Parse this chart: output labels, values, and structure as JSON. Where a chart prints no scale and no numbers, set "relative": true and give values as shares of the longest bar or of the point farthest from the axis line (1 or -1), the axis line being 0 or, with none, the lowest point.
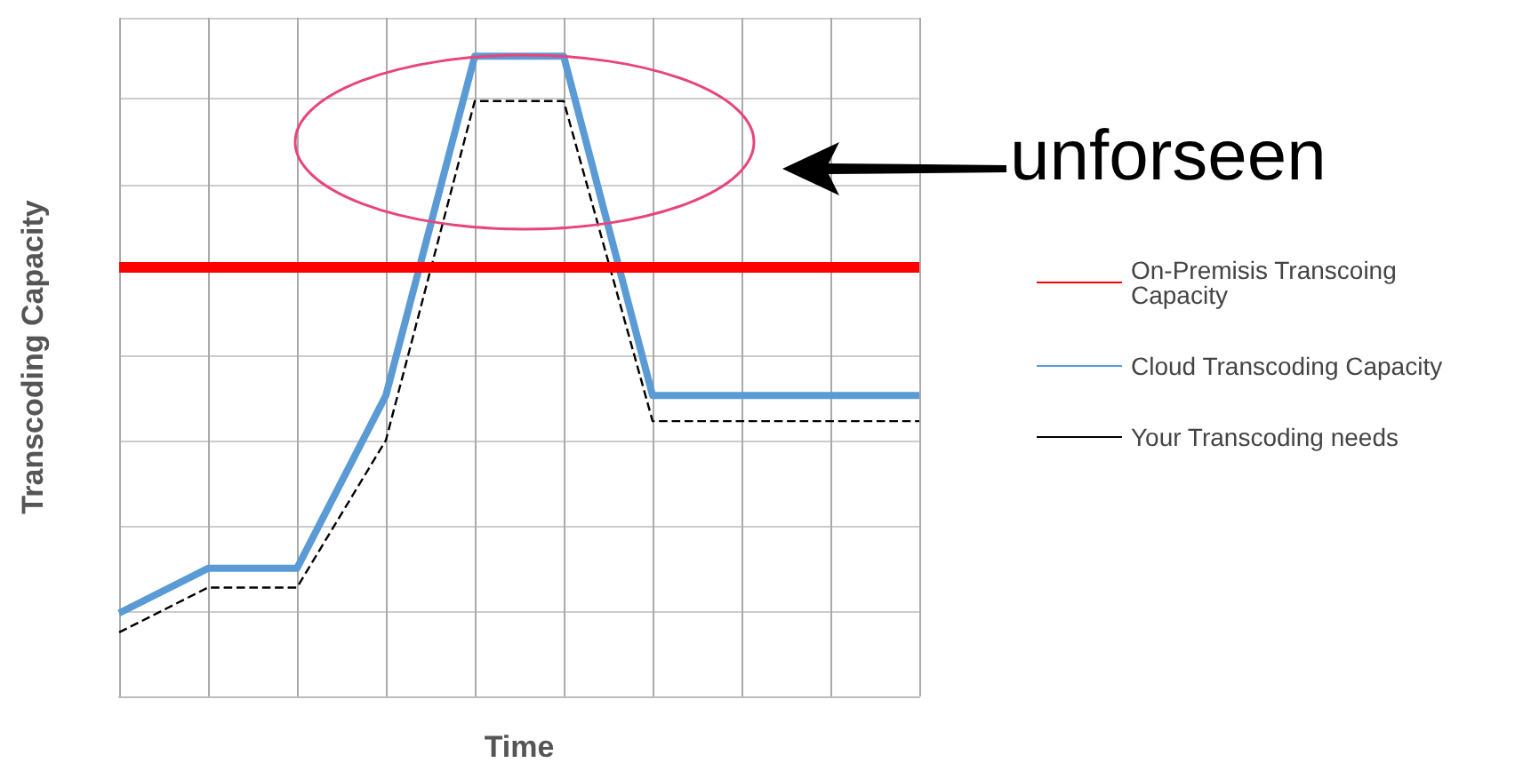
{
  "chart_data": {
    "type": "line",
    "relative": true,
    "xlabel": "Time",
    "ylabel": "Transcoding Capacity",
    "categories": [
      null,
      null,
      null,
      null,
      null,
      null,
      null,
      null,
      null,
      null
    ],
    "series": [
      {
        "name": "On-Premisis Transcoing Capacity",
        "color": "#ff0000",
        "values": [
          0.67,
          0.67,
          0.67,
          0.67,
          0.67,
          0.67,
          0.67,
          0.67,
          0.67,
          0.67
        ]
      },
      {
        "name": "Cloud Transcoding Capacity",
        "color": "#5b9bd5",
        "values": [
          0.13,
          0.2,
          0.2,
          0.47,
          1,
          1,
          0.47,
          0.47,
          0.47,
          0.47
        ]
      },
      {
        "name": "Your Transcoding needs",
        "color": "#000000",
        "line_style": "dashed",
        "values": [
          0.1,
          0.17,
          0.17,
          0.4,
          0.93,
          0.93,
          0.43,
          0.43,
          0.43,
          0.43
        ]
      }
    ],
    "annotations": [
      "unforseen"
    ],
    "grid": true,
    "legend": "right",
    "marker": "none"
  }
}
